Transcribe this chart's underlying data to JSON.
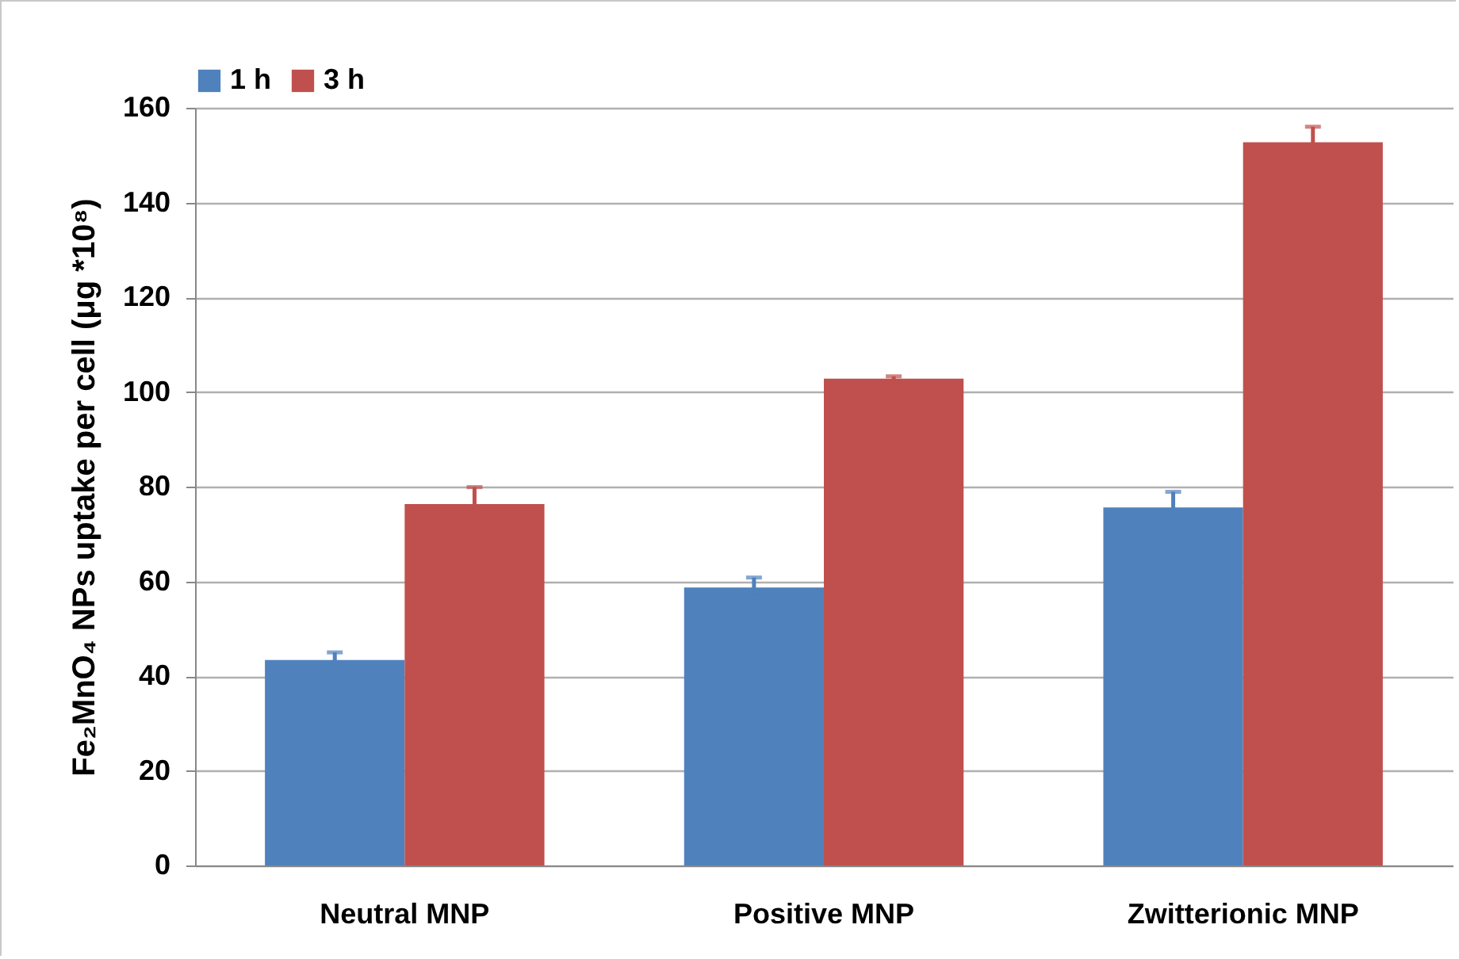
{
  "chart_data": {
    "type": "bar",
    "ylabel": "Fe₂MnO₄ NPs uptake per cell (μg *10⁸)",
    "categories": [
      "Neutral MNP",
      "Positive MNP",
      "Zwitterionic MNP"
    ],
    "series": [
      {
        "name": "1 h",
        "color": "#4f81bd",
        "values": [
          43.4,
          58.7,
          75.6
        ],
        "errors": [
          1.6,
          2.1,
          3.3
        ]
      },
      {
        "name": "3 h",
        "color": "#c0504d",
        "values": [
          76.3,
          102.8,
          152.7
        ],
        "errors": [
          3.6,
          0.5,
          3.3
        ]
      }
    ],
    "ylim": [
      0,
      160
    ],
    "yticks": [
      0,
      20,
      40,
      60,
      80,
      100,
      120,
      140,
      160
    ],
    "grid": "y",
    "legend": "top"
  }
}
